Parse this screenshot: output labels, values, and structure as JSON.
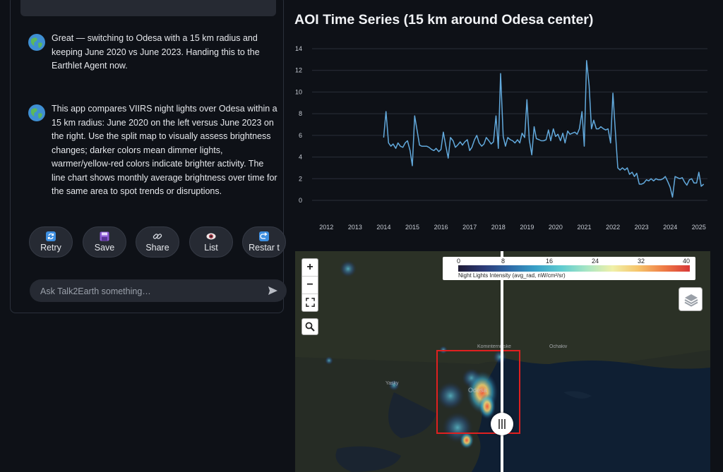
{
  "chat": {
    "messages": [
      {
        "text": "Great — switching to Odesa with a 15 km radius and keeping June 2020 vs June 2023. Handing this to the Earthlet Agent now."
      },
      {
        "text": "This app compares VIIRS night lights over Odesa within a 15 km radius: June 2020 on the left versus June 2023 on the right. Use the split map to visually assess brightness changes; darker colors mean dimmer lights, warmer/yellow-red colors indicate brighter activity. The line chart shows monthly average brightness over time for the same area to spot trends or disruptions."
      }
    ],
    "actions": [
      {
        "label": "Retry",
        "icon": "retry-icon"
      },
      {
        "label": "Save",
        "icon": "save-icon"
      },
      {
        "label": "Share",
        "icon": "link-icon"
      },
      {
        "label": "List",
        "icon": "eye-icon"
      },
      {
        "label": "Restar t",
        "icon": "restart-icon"
      }
    ],
    "input_placeholder": "Ask Talk2Earth something…"
  },
  "chart_data": {
    "type": "line",
    "title": "AOI Time Series (15 km around Odesa center)",
    "xlabel": "",
    "ylabel": "",
    "ylim": [
      0,
      14
    ],
    "yticks": [
      0,
      2,
      4,
      6,
      8,
      10,
      12,
      14
    ],
    "xlim": [
      2011.5,
      2025.3
    ],
    "xticks": [
      2012,
      2013,
      2014,
      2015,
      2016,
      2017,
      2018,
      2019,
      2020,
      2021,
      2022,
      2023,
      2024,
      2025
    ],
    "grid": "horizontal",
    "line_color": "#62a9dc",
    "points": [
      [
        2014.0,
        5.8
      ],
      [
        2014.08,
        8.2
      ],
      [
        2014.17,
        5.3
      ],
      [
        2014.25,
        5.0
      ],
      [
        2014.33,
        5.2
      ],
      [
        2014.42,
        4.8
      ],
      [
        2014.5,
        5.3
      ],
      [
        2014.58,
        5.0
      ],
      [
        2014.67,
        4.9
      ],
      [
        2014.75,
        5.3
      ],
      [
        2014.83,
        5.5
      ],
      [
        2014.92,
        4.6
      ],
      [
        2015.0,
        3.2
      ],
      [
        2015.08,
        7.8
      ],
      [
        2015.17,
        6.4
      ],
      [
        2015.25,
        5.1
      ],
      [
        2015.33,
        5.0
      ],
      [
        2015.42,
        5.0
      ],
      [
        2015.5,
        5.0
      ],
      [
        2015.58,
        4.9
      ],
      [
        2015.67,
        4.7
      ],
      [
        2015.75,
        4.6
      ],
      [
        2015.83,
        4.8
      ],
      [
        2015.92,
        4.5
      ],
      [
        2016.0,
        4.7
      ],
      [
        2016.08,
        6.3
      ],
      [
        2016.17,
        5.0
      ],
      [
        2016.25,
        3.9
      ],
      [
        2016.33,
        5.8
      ],
      [
        2016.42,
        5.5
      ],
      [
        2016.5,
        4.9
      ],
      [
        2016.58,
        5.1
      ],
      [
        2016.67,
        5.4
      ],
      [
        2016.75,
        5.1
      ],
      [
        2016.83,
        5.4
      ],
      [
        2016.92,
        5.6
      ],
      [
        2017.0,
        4.6
      ],
      [
        2017.08,
        4.9
      ],
      [
        2017.17,
        5.6
      ],
      [
        2017.25,
        6.0
      ],
      [
        2017.33,
        5.3
      ],
      [
        2017.42,
        5.0
      ],
      [
        2017.5,
        5.2
      ],
      [
        2017.58,
        5.8
      ],
      [
        2017.67,
        5.5
      ],
      [
        2017.75,
        5.2
      ],
      [
        2017.83,
        5.4
      ],
      [
        2017.92,
        7.8
      ],
      [
        2018.0,
        4.8
      ],
      [
        2018.08,
        11.7
      ],
      [
        2018.17,
        5.9
      ],
      [
        2018.25,
        5.0
      ],
      [
        2018.33,
        5.8
      ],
      [
        2018.42,
        5.6
      ],
      [
        2018.5,
        5.5
      ],
      [
        2018.58,
        5.3
      ],
      [
        2018.67,
        5.6
      ],
      [
        2018.75,
        5.3
      ],
      [
        2018.83,
        6.2
      ],
      [
        2018.92,
        5.8
      ],
      [
        2019.0,
        9.3
      ],
      [
        2019.08,
        5.6
      ],
      [
        2019.17,
        4.2
      ],
      [
        2019.25,
        6.8
      ],
      [
        2019.33,
        5.7
      ],
      [
        2019.42,
        5.6
      ],
      [
        2019.5,
        5.5
      ],
      [
        2019.58,
        5.5
      ],
      [
        2019.67,
        5.6
      ],
      [
        2019.75,
        6.5
      ],
      [
        2019.83,
        5.5
      ],
      [
        2019.92,
        6.6
      ],
      [
        2020.0,
        5.9
      ],
      [
        2020.08,
        6.1
      ],
      [
        2020.17,
        5.5
      ],
      [
        2020.25,
        6.2
      ],
      [
        2020.33,
        5.3
      ],
      [
        2020.42,
        6.4
      ],
      [
        2020.5,
        6.1
      ],
      [
        2020.58,
        6.2
      ],
      [
        2020.67,
        6.3
      ],
      [
        2020.75,
        6.1
      ],
      [
        2020.83,
        6.6
      ],
      [
        2020.92,
        8.2
      ],
      [
        2021.0,
        5.0
      ],
      [
        2021.08,
        12.9
      ],
      [
        2021.17,
        10.6
      ],
      [
        2021.25,
        6.6
      ],
      [
        2021.33,
        7.4
      ],
      [
        2021.42,
        6.6
      ],
      [
        2021.5,
        6.6
      ],
      [
        2021.58,
        6.8
      ],
      [
        2021.67,
        6.6
      ],
      [
        2021.75,
        6.5
      ],
      [
        2021.83,
        6.6
      ],
      [
        2021.92,
        5.3
      ],
      [
        2022.0,
        9.9
      ],
      [
        2022.08,
        6.6
      ],
      [
        2022.17,
        3.0
      ],
      [
        2022.25,
        2.8
      ],
      [
        2022.33,
        3.0
      ],
      [
        2022.42,
        2.8
      ],
      [
        2022.5,
        3.0
      ],
      [
        2022.58,
        2.4
      ],
      [
        2022.67,
        2.6
      ],
      [
        2022.75,
        2.2
      ],
      [
        2022.83,
        2.5
      ],
      [
        2022.92,
        1.5
      ],
      [
        2023.0,
        1.5
      ],
      [
        2023.08,
        1.6
      ],
      [
        2023.17,
        1.9
      ],
      [
        2023.25,
        1.8
      ],
      [
        2023.33,
        2.0
      ],
      [
        2023.42,
        1.8
      ],
      [
        2023.5,
        2.0
      ],
      [
        2023.58,
        1.9
      ],
      [
        2023.67,
        1.9
      ],
      [
        2023.75,
        2.0
      ],
      [
        2023.83,
        2.2
      ],
      [
        2023.92,
        1.7
      ],
      [
        2024.0,
        1.2
      ],
      [
        2024.08,
        0.3
      ],
      [
        2024.17,
        2.2
      ],
      [
        2024.25,
        2.1
      ],
      [
        2024.33,
        2.0
      ],
      [
        2024.42,
        2.1
      ],
      [
        2024.5,
        1.7
      ],
      [
        2024.58,
        1.4
      ],
      [
        2024.67,
        1.9
      ],
      [
        2024.75,
        2.0
      ],
      [
        2024.83,
        1.6
      ],
      [
        2024.92,
        1.6
      ],
      [
        2025.0,
        2.6
      ],
      [
        2025.08,
        1.3
      ],
      [
        2025.17,
        1.5
      ]
    ]
  },
  "map": {
    "zoom_in": "+",
    "zoom_out": "−",
    "legend": {
      "ticks": [
        "0",
        "8",
        "16",
        "24",
        "32",
        "40"
      ],
      "caption": "Night Lights Intensity (avg_rad, nW/cm²/sr)"
    },
    "labels": [
      "Odesa"
    ],
    "aoi_color": "#e02020"
  }
}
